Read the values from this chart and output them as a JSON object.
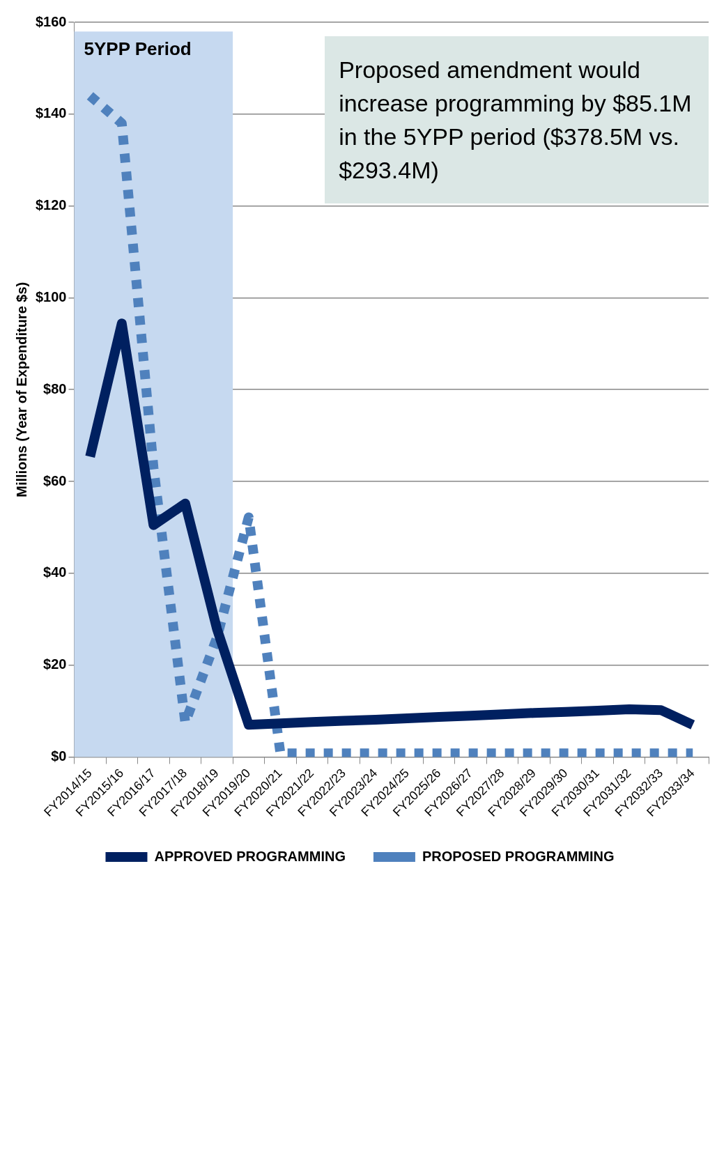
{
  "chart_data": {
    "type": "line",
    "categories": [
      "FY2014/15",
      "FY2015/16",
      "FY2016/17",
      "FY2017/18",
      "FY2018/19",
      "FY2019/20",
      "FY2020/21",
      "FY2021/22",
      "FY2022/23",
      "FY2023/24",
      "FY2024/25",
      "FY2025/26",
      "FY2026/27",
      "FY2027/28",
      "FY2028/29",
      "FY2029/30",
      "FY2030/31",
      "FY2031/32",
      "FY2032/33",
      "FY2033/34"
    ],
    "series": [
      {
        "name": "APPROVED PROGRAMMING",
        "color": "#002060",
        "line_style": "solid",
        "values": [
          65.4,
          94.4,
          50.5,
          55.2,
          27.9,
          7.0,
          7.3,
          7.6,
          7.9,
          8.1,
          8.4,
          8.7,
          9.0,
          9.3,
          9.6,
          9.8,
          10.1,
          10.4,
          10.2,
          7.0
        ]
      },
      {
        "name": "PROPOSED PROGRAMMING",
        "color": "#4f81bd",
        "line_style": "dotted",
        "values": [
          144,
          138,
          63,
          7.5,
          26,
          52.2,
          0.8,
          0.8,
          0.8,
          0.8,
          0.8,
          0.8,
          0.8,
          0.8,
          0.8,
          0.8,
          0.8,
          0.8,
          0.8,
          0.8
        ]
      }
    ],
    "ylabel": "Millions (Year of Expenditure $s)",
    "ylim": [
      0,
      160
    ],
    "yticks": [
      {
        "value": 0,
        "label": "$0"
      },
      {
        "value": 20,
        "label": "$20"
      },
      {
        "value": 40,
        "label": "$40"
      },
      {
        "value": 60,
        "label": "$60"
      },
      {
        "value": 80,
        "label": "$80"
      },
      {
        "value": 100,
        "label": "$100"
      },
      {
        "value": 120,
        "label": "$120"
      },
      {
        "value": 140,
        "label": "$140"
      },
      {
        "value": 160,
        "label": "$160"
      }
    ],
    "bands": [
      {
        "axis": "x",
        "from": "FY2014/15",
        "to": "FY2018/19",
        "label": "5YPP Period",
        "color": "#c6d9f0"
      }
    ],
    "annotations": [
      "Proposed amendment would increase programming by $85.1M in the 5YPP period ($378.5M vs. $293.4M)"
    ],
    "grid": "y",
    "legend": "bottom",
    "marker": "none"
  }
}
